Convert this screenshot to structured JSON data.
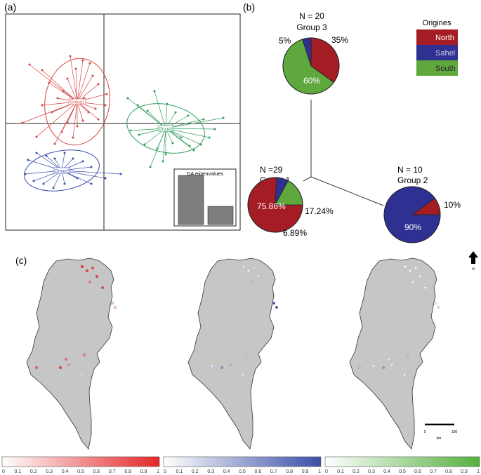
{
  "panels": {
    "a": "(a)",
    "b": "(b)",
    "c": "(c)"
  },
  "colors": {
    "north": "#a51d24",
    "sahel": "#2e3192",
    "south": "#5fa83d",
    "map_gray": "#c6c6c6",
    "scatter_red": "#d64545",
    "scatter_green": "#2f9e5b",
    "scatter_blue": "#3a4fb0"
  },
  "dapc": {
    "group_labels": [
      "Group1",
      "Group3",
      "Group2"
    ],
    "eigen_title": "DA eigenvalues",
    "eigenvalues": [
      1.0,
      0.37
    ]
  },
  "legend": {
    "title": "Origines",
    "items": [
      "North",
      "Sahel",
      "South"
    ]
  },
  "groups": [
    {
      "n_label": "N = 20",
      "name": "Group 3",
      "labels": [
        "5%",
        "35%",
        "60%"
      ],
      "slices": [
        {
          "origin": "North",
          "value": 35
        },
        {
          "origin": "South",
          "value": 60
        },
        {
          "origin": "Sahel",
          "value": 5
        }
      ]
    },
    {
      "n_label": "N =29",
      "name": "Group 1",
      "labels": [
        "75.86%",
        "17.24%",
        "6.89%"
      ],
      "slices": [
        {
          "origin": "North",
          "value": 75.86
        },
        {
          "origin": "Sahel",
          "value": 6.89
        },
        {
          "origin": "South",
          "value": 17.24
        }
      ]
    },
    {
      "n_label": "N = 10",
      "name": "Group 2",
      "labels": [
        "10%",
        "90%"
      ],
      "slices": [
        {
          "origin": "North",
          "value": 10
        },
        {
          "origin": "Sahel",
          "value": 90
        }
      ]
    }
  ],
  "maps": {
    "north_symbol": "N",
    "scale_label_start": "0",
    "scale_label_end": "100",
    "scale_unit": "km",
    "colorbar_ticks": [
      "0",
      "0.1",
      "0.2",
      "0.3",
      "0.4",
      "0.5",
      "0.6",
      "0.7",
      "0.8",
      "0.9",
      "1"
    ],
    "colorbar_colors": [
      "#e52628",
      "#3b4fa8",
      "#55b03e"
    ]
  }
}
